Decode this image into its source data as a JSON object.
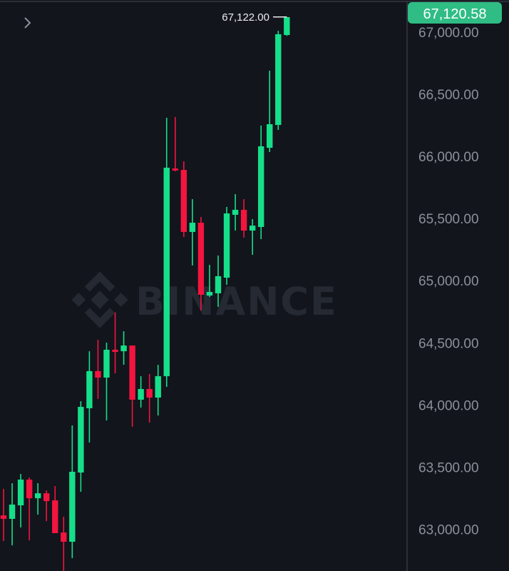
{
  "chart_data": {
    "type": "candlestick",
    "title": "",
    "xlabel": "",
    "ylabel": "",
    "ylim": [
      62800,
      67200
    ],
    "y_ticks": [
      67000,
      66500,
      66000,
      65500,
      65000,
      64500,
      64000,
      63500,
      63000
    ],
    "y_tick_labels": [
      "67,000.00",
      "66,500.00",
      "66,000.00",
      "65,500.00",
      "65,000.00",
      "64,500.00",
      "64,000.00",
      "63,500.00",
      "63,000.00"
    ],
    "grid": false,
    "colors": {
      "up": "#16df8a",
      "down": "#f3143f",
      "background": "#12151c",
      "last_price_badge": "#2fbd85",
      "axis_text": "#8b9099"
    },
    "high_marker_label": "67,122.00",
    "high_marker_value": 67122,
    "last_price_label": "67,120.58",
    "last_price_value": 67120.58,
    "watermark": "BINANCE",
    "candles": [
      {
        "o": 63111,
        "h": 63324,
        "l": 62905,
        "c": 63083
      },
      {
        "o": 63083,
        "h": 63370,
        "l": 62870,
        "c": 63198
      },
      {
        "o": 63192,
        "h": 63444,
        "l": 63014,
        "c": 63399
      },
      {
        "o": 63399,
        "h": 63416,
        "l": 62910,
        "c": 63249
      },
      {
        "o": 63249,
        "h": 63370,
        "l": 63117,
        "c": 63289
      },
      {
        "o": 63289,
        "h": 63312,
        "l": 63065,
        "c": 63226
      },
      {
        "o": 63232,
        "h": 63347,
        "l": 62968,
        "c": 62968
      },
      {
        "o": 62973,
        "h": 63100,
        "l": 62663,
        "c": 62899
      },
      {
        "o": 62899,
        "h": 63835,
        "l": 62767,
        "c": 63462
      },
      {
        "o": 63456,
        "h": 64030,
        "l": 63301,
        "c": 63984
      },
      {
        "o": 63973,
        "h": 64432,
        "l": 63697,
        "c": 64272
      },
      {
        "o": 64272,
        "h": 64524,
        "l": 64048,
        "c": 64220
      },
      {
        "o": 64220,
        "h": 64501,
        "l": 63875,
        "c": 64444
      },
      {
        "o": 64444,
        "h": 64743,
        "l": 64254,
        "c": 64427
      },
      {
        "o": 64432,
        "h": 64593,
        "l": 64323,
        "c": 64478
      },
      {
        "o": 64478,
        "h": 64478,
        "l": 63824,
        "c": 64042
      },
      {
        "o": 64042,
        "h": 64231,
        "l": 63979,
        "c": 64128
      },
      {
        "o": 64128,
        "h": 64249,
        "l": 63858,
        "c": 64059
      },
      {
        "o": 64059,
        "h": 64323,
        "l": 63915,
        "c": 64231
      },
      {
        "o": 64231,
        "h": 66311,
        "l": 64145,
        "c": 65909
      },
      {
        "o": 65903,
        "h": 66317,
        "l": 65880,
        "c": 65886
      },
      {
        "o": 65891,
        "h": 65960,
        "l": 65351,
        "c": 65392
      },
      {
        "o": 65392,
        "h": 65656,
        "l": 65122,
        "c": 65466
      },
      {
        "o": 65466,
        "h": 65512,
        "l": 64760,
        "c": 64886
      },
      {
        "o": 64880,
        "h": 65127,
        "l": 64869,
        "c": 64909
      },
      {
        "o": 64898,
        "h": 65202,
        "l": 64789,
        "c": 65036
      },
      {
        "o": 65024,
        "h": 65593,
        "l": 64967,
        "c": 65541
      },
      {
        "o": 65530,
        "h": 65696,
        "l": 65403,
        "c": 65570
      },
      {
        "o": 65570,
        "h": 65656,
        "l": 65346,
        "c": 65403
      },
      {
        "o": 65403,
        "h": 65495,
        "l": 65208,
        "c": 65443
      },
      {
        "o": 65432,
        "h": 66248,
        "l": 65334,
        "c": 66081
      },
      {
        "o": 66069,
        "h": 66690,
        "l": 66035,
        "c": 66259
      },
      {
        "o": 66253,
        "h": 67011,
        "l": 66213,
        "c": 66983
      },
      {
        "o": 66977,
        "h": 67122,
        "l": 66970,
        "c": 67120.58
      }
    ]
  },
  "ui": {
    "collapse_icon": "chevron-right-icon"
  }
}
